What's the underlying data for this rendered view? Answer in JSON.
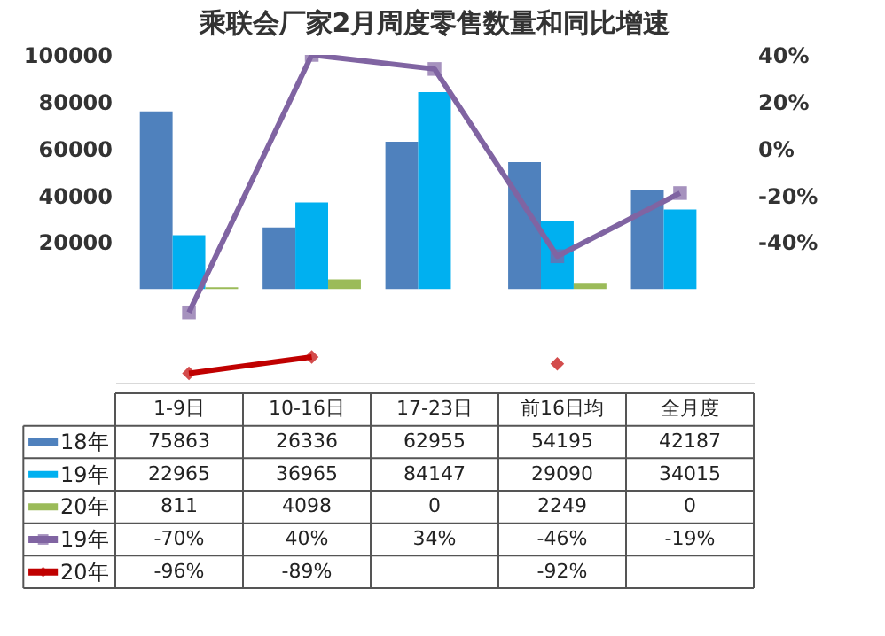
{
  "chart_data": {
    "type": "bar",
    "title": "乘联会厂家2月周度零售数量和同比增速",
    "categories": [
      "1-9日",
      "10-16日",
      "17-23日",
      "前16日均",
      "全月度"
    ],
    "series": [
      {
        "name": "18年",
        "color": "#4f81bd",
        "values": [
          75863,
          26336,
          62955,
          54195,
          42187
        ],
        "value_labels": [
          "75863",
          "26336",
          "62955",
          "54195",
          "42187"
        ]
      },
      {
        "name": "19年",
        "color": "#00b0f0",
        "values": [
          22965,
          36965,
          84147,
          29090,
          34015
        ],
        "value_labels": [
          "22965",
          "36965",
          "84147",
          "29090",
          "34015"
        ]
      },
      {
        "name": "20年",
        "color": "#9bbb59",
        "values": [
          811,
          4098,
          0,
          2249,
          0
        ],
        "value_labels": [
          "811",
          "4098",
          "0",
          "2249",
          "0"
        ]
      },
      {
        "name": "19年",
        "type": "line",
        "axis": "y2",
        "marker": "square",
        "color": "#8064a2",
        "values": [
          -70,
          40,
          34,
          -46,
          -19
        ],
        "value_labels": [
          "-70%",
          "40%",
          "34%",
          "-46%",
          "-19%"
        ]
      },
      {
        "name": "20年",
        "type": "line",
        "axis": "y2",
        "marker": "diamond",
        "color": "#c00000",
        "values": [
          -96,
          -89,
          null,
          -92,
          null
        ],
        "value_labels": [
          "-96%",
          "-89%",
          null,
          "-92%",
          null
        ]
      }
    ],
    "ylim": [
      -40000,
      100000
    ],
    "yticks": [
      20000,
      40000,
      60000,
      80000,
      100000
    ],
    "y2lim": [
      -100,
      40
    ],
    "y2ticks": [
      {
        "value": -40,
        "label": "-40%"
      },
      {
        "value": -20,
        "label": "-20%"
      },
      {
        "value": 0,
        "label": "0%"
      },
      {
        "value": 20,
        "label": "20%"
      },
      {
        "value": 40,
        "label": "40%"
      }
    ],
    "grid": false,
    "legend": "bottom",
    "line_style": "solid"
  }
}
